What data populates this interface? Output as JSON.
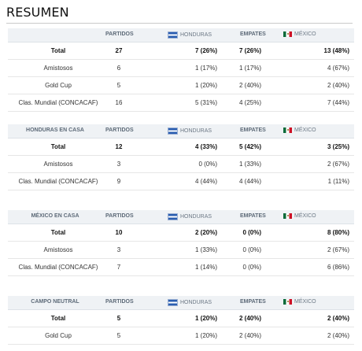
{
  "title": "RESUMEN",
  "columns": {
    "partidos": "PARTIDOS",
    "honduras": "HONDURAS",
    "empates": "EMPATES",
    "mexico": "MÉXICO"
  },
  "sections": [
    {
      "header": "",
      "rows": [
        {
          "label": "Total",
          "partidos": "27",
          "honduras": "7 (26%)",
          "empates": "7 (26%)",
          "mexico": "13 (48%)"
        },
        {
          "label": "Amistosos",
          "partidos": "6",
          "honduras": "1 (17%)",
          "empates": "1 (17%)",
          "mexico": "4 (67%)"
        },
        {
          "label": "Gold Cup",
          "partidos": "5",
          "honduras": "1 (20%)",
          "empates": "2 (40%)",
          "mexico": "2 (40%)"
        },
        {
          "label": "Clas. Mundial (CONCACAF)",
          "partidos": "16",
          "honduras": "5 (31%)",
          "empates": "4 (25%)",
          "mexico": "7 (44%)"
        }
      ]
    },
    {
      "header": "HONDURAS EN CASA",
      "rows": [
        {
          "label": "Total",
          "partidos": "12",
          "honduras": "4 (33%)",
          "empates": "5 (42%)",
          "mexico": "3 (25%)"
        },
        {
          "label": "Amistosos",
          "partidos": "3",
          "honduras": "0 (0%)",
          "empates": "1 (33%)",
          "mexico": "2 (67%)"
        },
        {
          "label": "Clas. Mundial (CONCACAF)",
          "partidos": "9",
          "honduras": "4 (44%)",
          "empates": "4 (44%)",
          "mexico": "1 (11%)"
        }
      ]
    },
    {
      "header": "MÉXICO EN CASA",
      "rows": [
        {
          "label": "Total",
          "partidos": "10",
          "honduras": "2 (20%)",
          "empates": "0 (0%)",
          "mexico": "8 (80%)"
        },
        {
          "label": "Amistosos",
          "partidos": "3",
          "honduras": "1 (33%)",
          "empates": "0 (0%)",
          "mexico": "2 (67%)"
        },
        {
          "label": "Clas. Mundial (CONCACAF)",
          "partidos": "7",
          "honduras": "1 (14%)",
          "empates": "0 (0%)",
          "mexico": "6 (86%)"
        }
      ]
    },
    {
      "header": "CAMPO NEUTRAL",
      "rows": [
        {
          "label": "Total",
          "partidos": "5",
          "honduras": "1 (20%)",
          "empates": "2 (40%)",
          "mexico": "2 (40%)"
        },
        {
          "label": "Gold Cup",
          "partidos": "5",
          "honduras": "1 (20%)",
          "empates": "2 (40%)",
          "mexico": "2 (40%)"
        }
      ]
    }
  ]
}
